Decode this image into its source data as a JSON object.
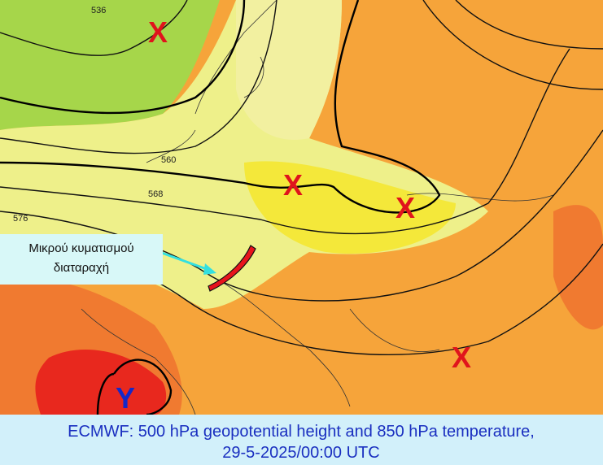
{
  "map": {
    "centers": [
      {
        "label": "X"
      },
      {
        "label": "X"
      },
      {
        "label": "X"
      },
      {
        "label": "X"
      },
      {
        "label": "Y"
      }
    ],
    "contour_labels": [
      "536",
      "560",
      "568",
      "576"
    ],
    "annotation": {
      "lines": [
        "Μικρού κυματισμού",
        "διαταραχή"
      ]
    }
  },
  "caption": {
    "lines": [
      "ECMWF: 500 hPa geopotential height and 850 hPa temperature,",
      "29-5-2025/00:00 UTC"
    ]
  }
}
